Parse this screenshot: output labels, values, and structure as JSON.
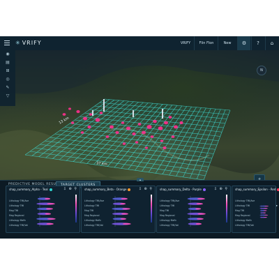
{
  "app": {
    "logo_text": "VRIFY",
    "logo_mark": "✳"
  },
  "header": {
    "nav": [
      "VRIFY",
      "Flin Flon",
      "New"
    ],
    "icons": [
      "settings-icon",
      "help-icon",
      "home-icon"
    ],
    "icon_glyphs": [
      "⚙",
      "?",
      "⌂"
    ]
  },
  "sidebar_icons": [
    "◉",
    "▤",
    "⊞",
    "◎",
    "✎",
    "▽"
  ],
  "map": {
    "distance_left": "13 km",
    "distance_bottom": "37 km",
    "compass": "N",
    "tool_glyph": "⇧"
  },
  "tabs": {
    "left": "PREDICTIVE MODEL RESULTS",
    "right": "TARGET CLUSTERS",
    "handle": "▴"
  },
  "panels": [
    {
      "title": "shap_summary_Alpha - Teal",
      "color": "#2fd6d0"
    },
    {
      "title": "shap_summary_Beta - Orange",
      "color": "#ff9a2e"
    },
    {
      "title": "shap_summary_Delta - Purple",
      "color": "#8a63ff"
    },
    {
      "title": "shap_summary_Epsilon - Red",
      "color": "#ff3a5c"
    }
  ],
  "panel_labels": [
    "Lithology TMI/Ave",
    "Lithology TMI",
    "Mag TMI",
    "Mag Regional",
    "Lithology Mafic",
    "Lithology TMI/Vol"
  ],
  "panel_tools": "⇩ ⊕ ⚲",
  "next_glyph": "▸",
  "colors": {
    "accent": "#38c8c8",
    "grid": "#3fe0d8",
    "cluster": "#ff2f8e"
  }
}
